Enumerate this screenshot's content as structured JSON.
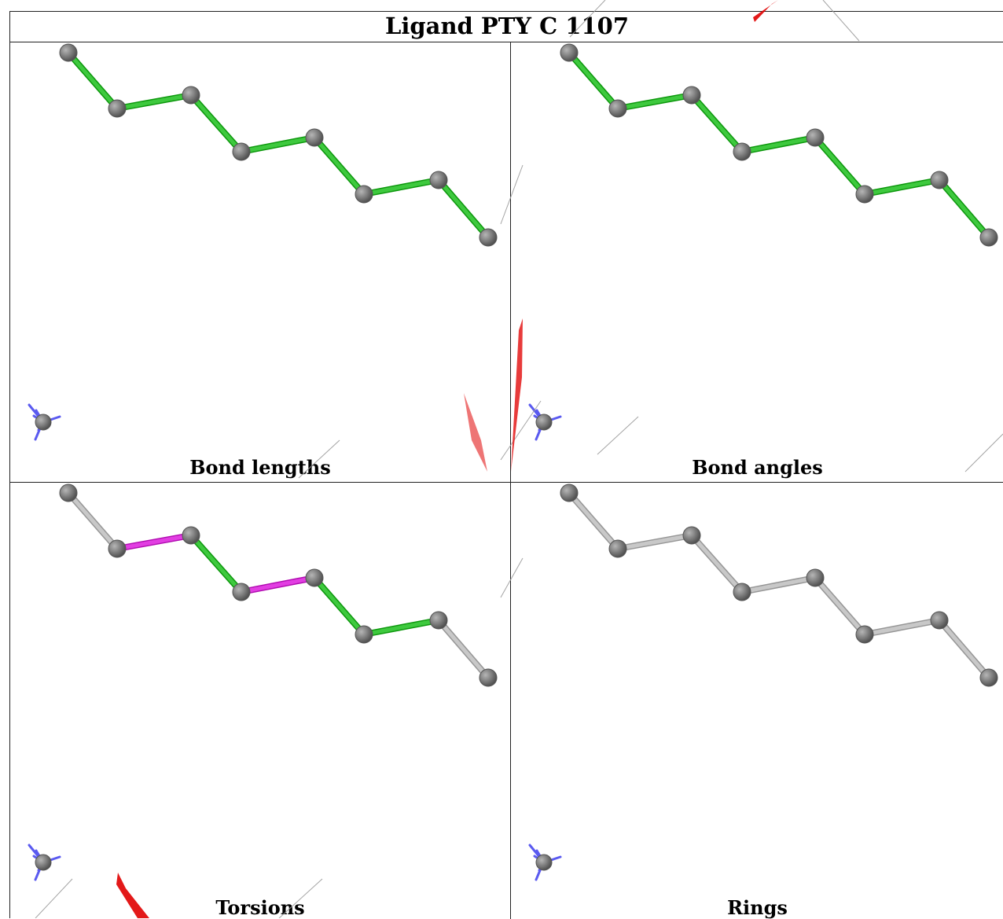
{
  "title": "Ligand PTY C 1107",
  "panels": [
    {
      "caption": "Bond lengths",
      "bond_colors": [
        "green",
        "green",
        "green",
        "green",
        "green",
        "green",
        "green",
        "green"
      ]
    },
    {
      "caption": "Bond angles",
      "bond_colors": [
        "green",
        "green",
        "green",
        "green",
        "green",
        "green",
        "green",
        "green"
      ]
    },
    {
      "caption": "Torsions",
      "bond_colors": [
        "gray",
        "magenta",
        "green",
        "magenta",
        "green",
        "green",
        "gray",
        "gray"
      ]
    },
    {
      "caption": "Rings",
      "bond_colors": [
        "gray",
        "gray",
        "gray",
        "gray",
        "gray",
        "gray",
        "gray",
        "gray"
      ]
    }
  ],
  "colors": {
    "green": "#3ec93e",
    "magenta": "#e23ee2",
    "gray": "#c8c8c8",
    "atom": "#7a7a7a",
    "axis": "#5a5af0",
    "watermark": "#e00000"
  }
}
